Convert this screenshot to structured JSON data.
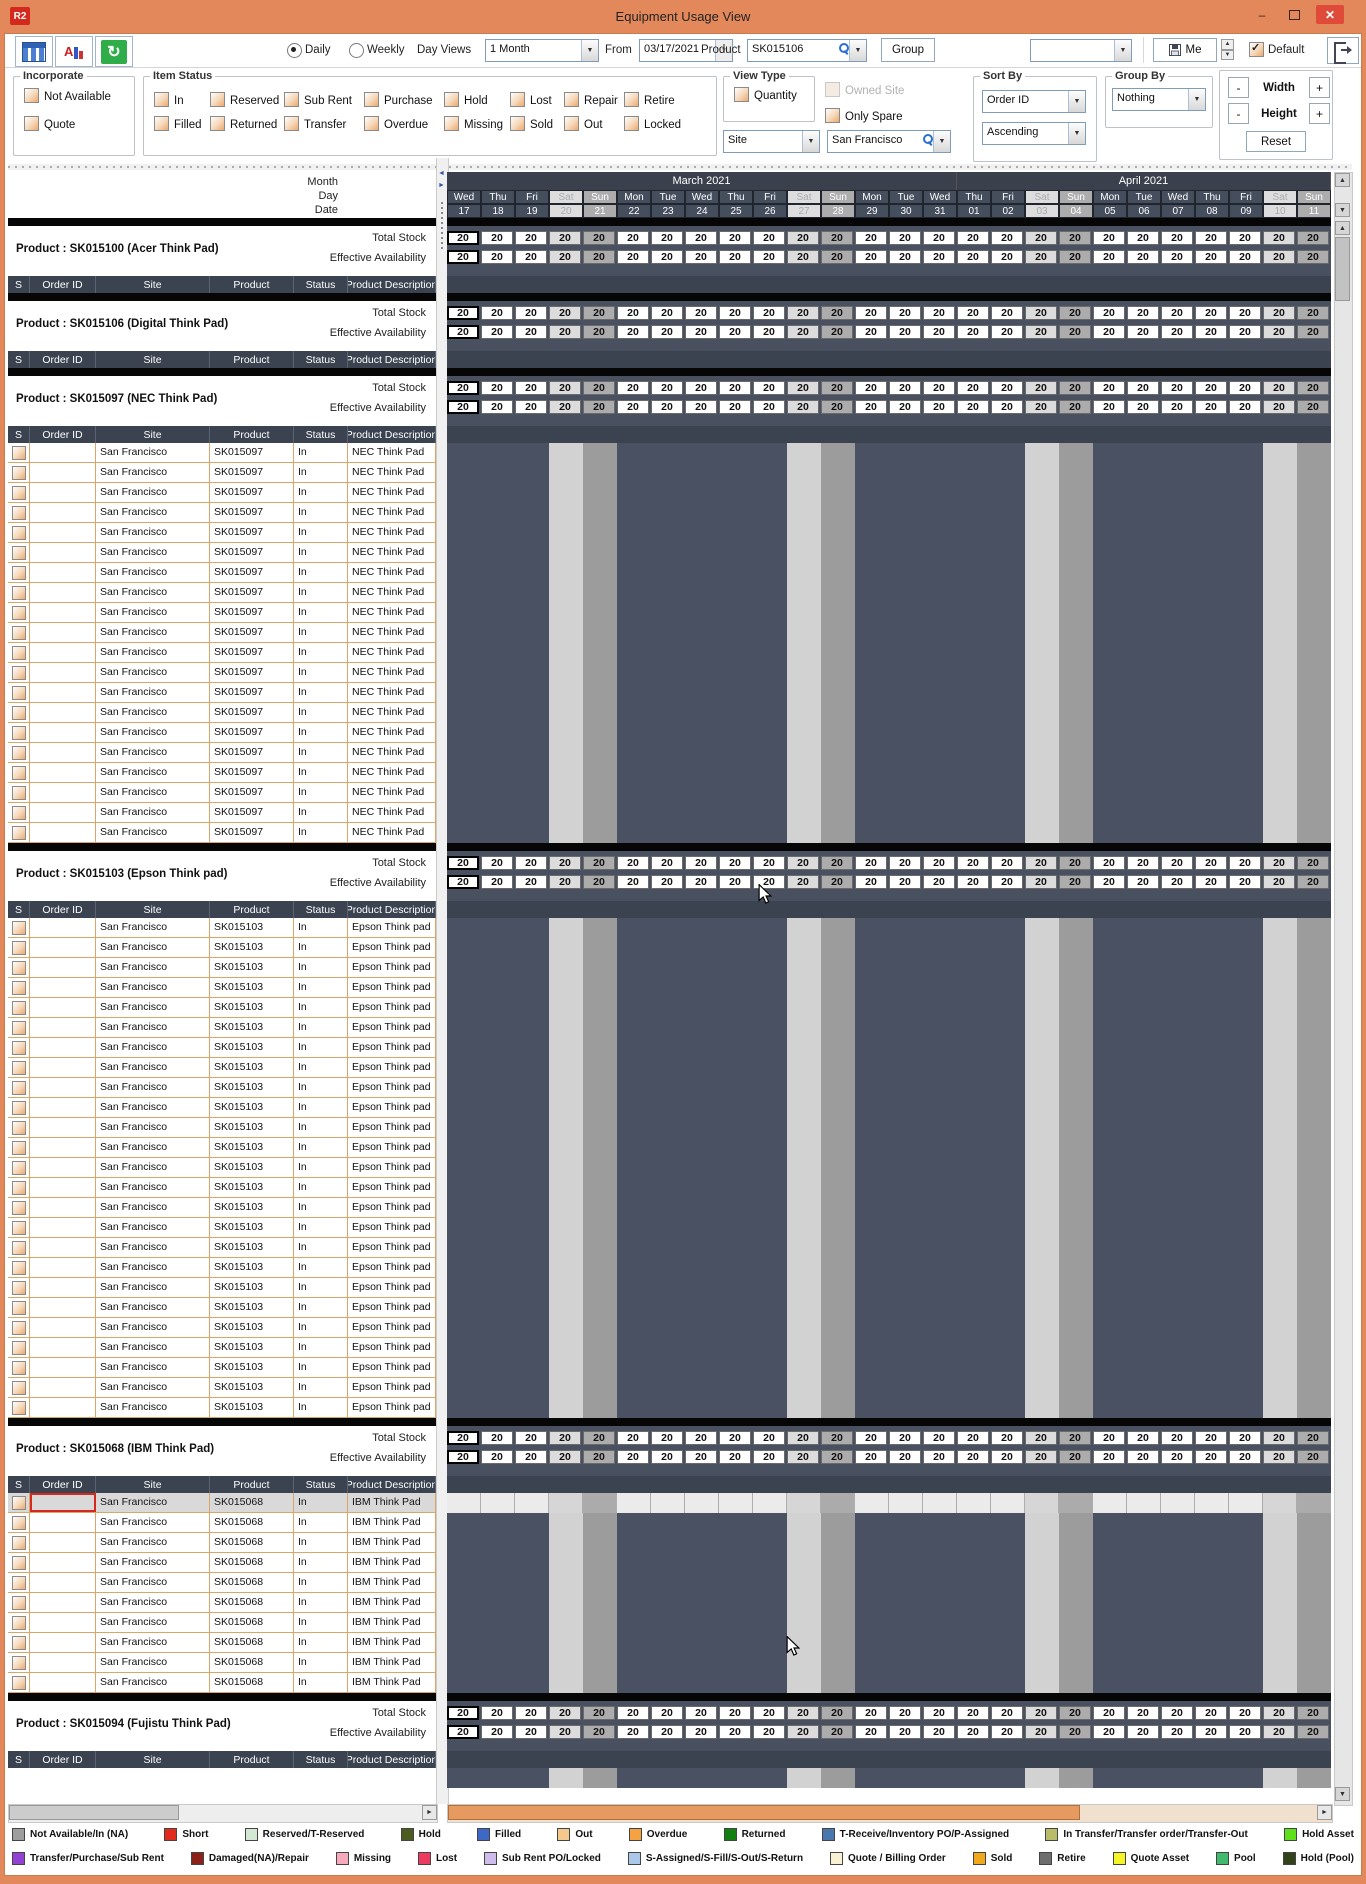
{
  "window": {
    "app_icon": "R2",
    "title": "Equipment Usage View"
  },
  "toolbar": {
    "icons": [
      "usage-grid-icon",
      "sort-az-icon",
      "refresh-icon"
    ],
    "daily_label": "Daily",
    "weekly_label": "Weekly",
    "day_views_label": "Day Views",
    "day_views_value": "1 Month",
    "from_label": "From",
    "from_value": "03/17/2021",
    "product_label": "Product",
    "product_value": "SK015106",
    "group_button": "Group",
    "preset_value": "",
    "me_button": "Me",
    "default_label": "Default",
    "default_checked": true
  },
  "filters": {
    "incorporate": {
      "legend": "Incorporate",
      "options": [
        "Not Available",
        "Quote"
      ]
    },
    "item_status": {
      "legend": "Item Status",
      "row1": [
        "In",
        "Reserved",
        "Sub Rent",
        "Purchase",
        "Hold",
        "Lost",
        "Repair",
        "Retire"
      ],
      "row2": [
        "Filled",
        "Returned",
        "Transfer",
        "Overdue",
        "Missing",
        "Sold",
        "Out",
        "Locked"
      ]
    },
    "view_type": {
      "legend": "View Type",
      "option": "Quantity"
    },
    "owned_site_label": "Owned Site",
    "only_spare_label": "Only Spare",
    "site_dropdown_value": "Site",
    "site_value": "San Francisco",
    "sort_by": {
      "legend": "Sort By",
      "field": "Order ID",
      "direction": "Ascending"
    },
    "group_by": {
      "legend": "Group By",
      "value": "Nothing"
    },
    "size_controls": {
      "minus": "-",
      "plus": "+",
      "width": "Width",
      "height": "Height",
      "reset": "Reset"
    }
  },
  "grid": {
    "axis_labels": {
      "month": "Month",
      "day": "Day",
      "date": "Date"
    },
    "table_headers": [
      "S",
      "Order ID",
      "Site",
      "Product",
      "Status",
      "Product Description"
    ],
    "stock_labels": {
      "total": "Total Stock",
      "effective": "Effective Availability"
    },
    "stock_value": "20",
    "months": [
      {
        "label": "March 2021",
        "days": [
          {
            "dow": "Wed",
            "date": "17"
          },
          {
            "dow": "Thu",
            "date": "18"
          },
          {
            "dow": "Fri",
            "date": "19"
          },
          {
            "dow": "Sat",
            "date": "20"
          },
          {
            "dow": "Sun",
            "date": "21"
          },
          {
            "dow": "Mon",
            "date": "22"
          },
          {
            "dow": "Tue",
            "date": "23"
          },
          {
            "dow": "Wed",
            "date": "24"
          },
          {
            "dow": "Thu",
            "date": "25"
          },
          {
            "dow": "Fri",
            "date": "26"
          },
          {
            "dow": "Sat",
            "date": "27"
          },
          {
            "dow": "Sun",
            "date": "28"
          },
          {
            "dow": "Mon",
            "date": "29"
          },
          {
            "dow": "Tue",
            "date": "30"
          },
          {
            "dow": "Wed",
            "date": "31"
          }
        ]
      },
      {
        "label": "April 2021",
        "days": [
          {
            "dow": "Thu",
            "date": "01"
          },
          {
            "dow": "Fri",
            "date": "02"
          },
          {
            "dow": "Sat",
            "date": "03"
          },
          {
            "dow": "Sun",
            "date": "04"
          },
          {
            "dow": "Mon",
            "date": "05"
          },
          {
            "dow": "Tue",
            "date": "06"
          },
          {
            "dow": "Wed",
            "date": "07"
          },
          {
            "dow": "Thu",
            "date": "08"
          },
          {
            "dow": "Fri",
            "date": "09"
          },
          {
            "dow": "Sat",
            "date": "10"
          },
          {
            "dow": "Sun",
            "date": "11"
          }
        ]
      }
    ],
    "sections": [
      {
        "title": "Product : SK015100 (Acer Think Pad)",
        "product": "SK015100",
        "rows": 0
      },
      {
        "title": "Product : SK015106 (Digital Think Pad)",
        "product": "SK015106",
        "rows": 0
      },
      {
        "title": "Product : SK015097 (NEC Think Pad)",
        "product": "SK015097",
        "site": "San Francisco",
        "status": "In",
        "description": "NEC Think Pad",
        "rows": 20
      },
      {
        "title": "Product : SK015103 (Epson Think pad)",
        "product": "SK015103",
        "site": "San Francisco",
        "status": "In",
        "description": "Epson Think pad",
        "rows": 25
      },
      {
        "title": "Product : SK015068 (IBM Think Pad)",
        "product": "SK015068",
        "site": "San Francisco",
        "status": "In",
        "description": "IBM Think Pad",
        "rows": 10,
        "selected_row": 0
      },
      {
        "title": "Product : SK015094 (Fujistu Think Pad)",
        "product": "SK015094",
        "rows": 0,
        "clipped": true
      }
    ]
  },
  "legend": {
    "row1": [
      {
        "label": "Not Available/In (NA)",
        "color": "#9E9E9E"
      },
      {
        "label": "Short",
        "color": "#E02B1D"
      },
      {
        "label": "Reserved/T-Reserved",
        "color": "#D2E8D2"
      },
      {
        "label": "Hold",
        "color": "#4E5B20"
      },
      {
        "label": "Filled",
        "color": "#3F67C6"
      },
      {
        "label": "Out",
        "color": "#F5C98E"
      },
      {
        "label": "Overdue",
        "color": "#F5A243"
      },
      {
        "label": "Returned",
        "color": "#118011"
      },
      {
        "label": "T-Receive/Inventory PO/P-Assigned",
        "color": "#4A77AE"
      },
      {
        "label": "In Transfer/Transfer order/Transfer-Out",
        "color": "#B9BD6A"
      },
      {
        "label": "Hold Asset",
        "color": "#5FE01C"
      }
    ],
    "row2": [
      {
        "label": "Transfer/Purchase/Sub Rent",
        "color": "#9340D4"
      },
      {
        "label": "Damaged(NA)/Repair",
        "color": "#8C211A"
      },
      {
        "label": "Missing",
        "color": "#F7AABB"
      },
      {
        "label": "Lost",
        "color": "#EE3A5E"
      },
      {
        "label": "Sub Rent PO/Locked",
        "color": "#CEBCEC"
      },
      {
        "label": "S-Assigned/S-Fill/S-Out/S-Return",
        "color": "#ABC8EA"
      },
      {
        "label": "Quote / Billing Order",
        "color": "#F8F2D2"
      },
      {
        "label": "Sold",
        "color": "#F0A81C"
      },
      {
        "label": "Retire",
        "color": "#6E6E6E"
      },
      {
        "label": "Quote Asset",
        "color": "#F4F426"
      },
      {
        "label": "Pool",
        "color": "#41BA6E"
      },
      {
        "label": "Hold (Pool)",
        "color": "#32421B"
      }
    ]
  }
}
